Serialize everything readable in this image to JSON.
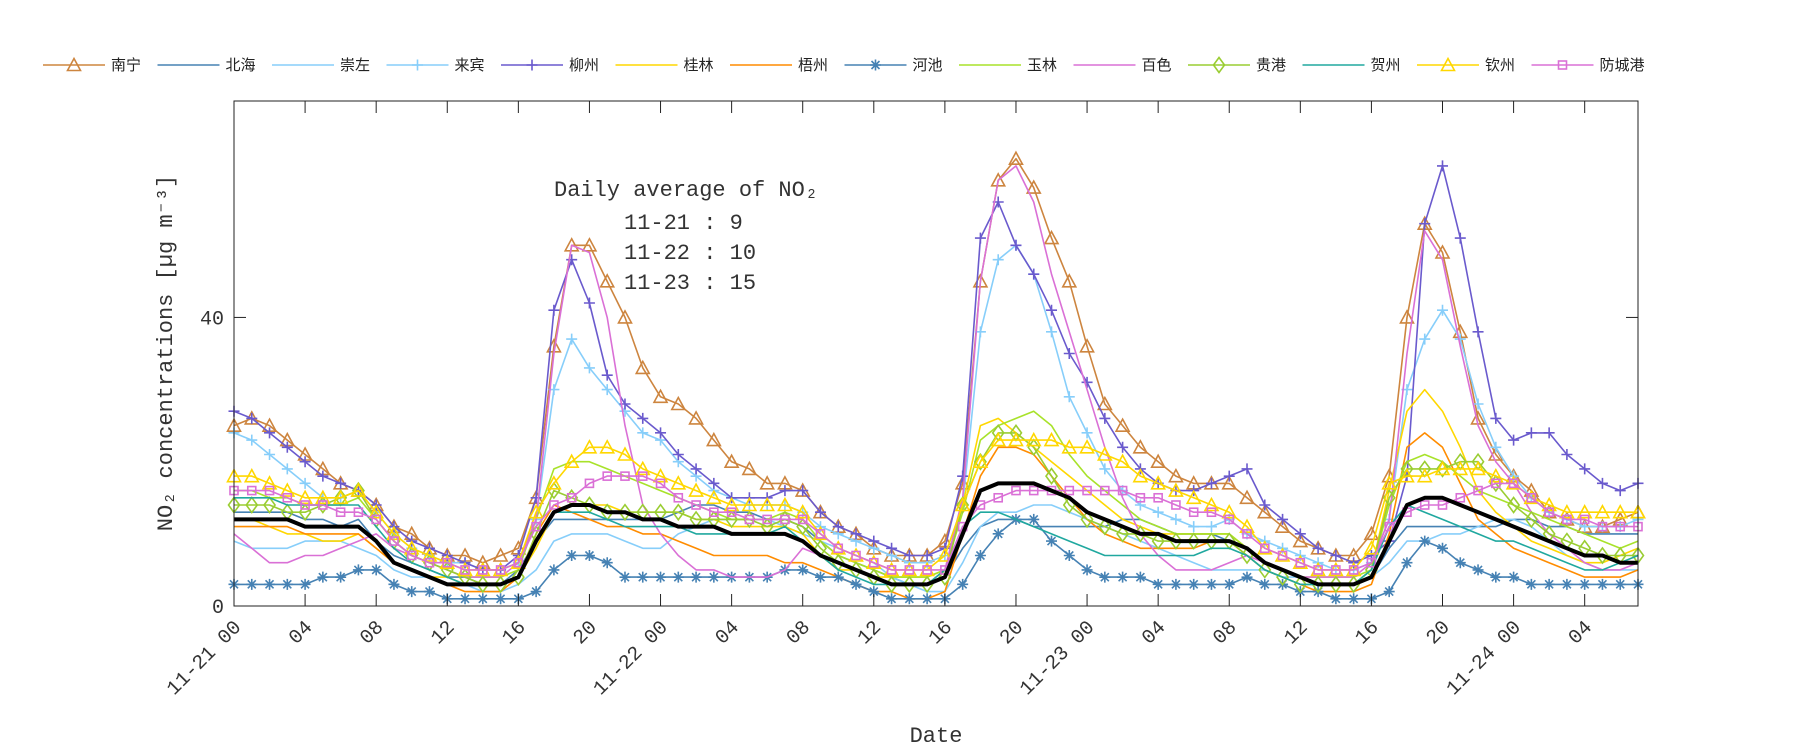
{
  "chart_data": {
    "type": "line",
    "xlabel": "Date",
    "ylabel": "NO₂ concentrations [µg m⁻³]",
    "xlim": [
      0,
      79
    ],
    "ylim": [
      0,
      70
    ],
    "yticks": [
      0,
      40
    ],
    "xticks": [
      {
        "h": 0,
        "label": "11-21 00"
      },
      {
        "h": 4,
        "label": "04"
      },
      {
        "h": 8,
        "label": "08"
      },
      {
        "h": 12,
        "label": "12"
      },
      {
        "h": 16,
        "label": "16"
      },
      {
        "h": 20,
        "label": "20"
      },
      {
        "h": 24,
        "label": "11-22 00"
      },
      {
        "h": 28,
        "label": "04"
      },
      {
        "h": 32,
        "label": "08"
      },
      {
        "h": 36,
        "label": "12"
      },
      {
        "h": 40,
        "label": "16"
      },
      {
        "h": 44,
        "label": "20"
      },
      {
        "h": 48,
        "label": "11-23 00"
      },
      {
        "h": 52,
        "label": "04"
      },
      {
        "h": 56,
        "label": "08"
      },
      {
        "h": 60,
        "label": "12"
      },
      {
        "h": 64,
        "label": "16"
      },
      {
        "h": 68,
        "label": "20"
      },
      {
        "h": 72,
        "label": "11-24 00"
      },
      {
        "h": 76,
        "label": "04"
      }
    ],
    "x_start": "11-21 00",
    "x_step": "1 hour",
    "grid": false,
    "legend_position": "top",
    "annotation": {
      "title": "Daily average of NO₂",
      "lines": [
        "11-21 : 9",
        "11-22 : 10",
        "11-23 : 15"
      ]
    },
    "series": [
      {
        "name": "南宁",
        "color": "#cd853f",
        "marker": "triangle",
        "values": [
          25,
          26,
          25,
          23,
          21,
          19,
          17,
          16,
          14,
          11,
          10,
          8,
          7,
          7,
          6,
          7,
          8,
          15,
          36,
          50,
          50,
          45,
          40,
          33,
          29,
          28,
          26,
          23,
          20,
          19,
          17,
          17,
          16,
          13,
          11,
          10,
          8,
          7,
          7,
          7,
          9,
          17,
          45,
          59,
          62,
          58,
          51,
          45,
          36,
          28,
          25,
          22,
          20,
          18,
          17,
          17,
          17,
          15,
          13,
          11,
          9,
          8,
          7,
          7,
          10,
          18,
          40,
          53,
          49,
          38,
          26,
          21,
          18,
          16,
          13,
          12,
          11,
          11,
          12,
          13
        ]
      },
      {
        "name": "北海",
        "color": "#4682b4",
        "marker": "none",
        "values": [
          13,
          13,
          13,
          13,
          12,
          12,
          11,
          12,
          9,
          7,
          6,
          5,
          4,
          4,
          3,
          3,
          5,
          9,
          12,
          12,
          12,
          12,
          12,
          12,
          12,
          13,
          14,
          14,
          13,
          13,
          12,
          12,
          11,
          9,
          7,
          6,
          5,
          4,
          3,
          3,
          4,
          8,
          11,
          12,
          12,
          11,
          11,
          11,
          11,
          11,
          12,
          12,
          11,
          10,
          10,
          10,
          9,
          8,
          6,
          5,
          4,
          3,
          3,
          3,
          4,
          8,
          11,
          11,
          11,
          11,
          11,
          11,
          12,
          12,
          11,
          11,
          10,
          10,
          10,
          10
        ]
      },
      {
        "name": "崇左",
        "color": "#87cefa",
        "marker": "none",
        "values": [
          9,
          8,
          8,
          8,
          9,
          9,
          9,
          8,
          7,
          5,
          4,
          4,
          3,
          3,
          2,
          2,
          3,
          5,
          9,
          10,
          10,
          10,
          9,
          8,
          8,
          10,
          11,
          12,
          12,
          12,
          12,
          11,
          10,
          9,
          8,
          7,
          6,
          4,
          3,
          2,
          2,
          6,
          11,
          13,
          13,
          14,
          14,
          13,
          12,
          11,
          10,
          9,
          8,
          7,
          6,
          5,
          5,
          5,
          5,
          4,
          4,
          3,
          3,
          3,
          4,
          6,
          9,
          9,
          10,
          10,
          11,
          12,
          12,
          11,
          9,
          7,
          6,
          5,
          5,
          5
        ]
      },
      {
        "name": "来宾",
        "color": "#87cefa",
        "marker": "plus",
        "values": [
          24,
          23,
          21,
          19,
          17,
          15,
          15,
          16,
          13,
          10,
          8,
          7,
          6,
          6,
          5,
          5,
          6,
          12,
          30,
          37,
          33,
          30,
          27,
          24,
          23,
          20,
          18,
          16,
          15,
          14,
          14,
          14,
          13,
          11,
          10,
          9,
          8,
          7,
          6,
          6,
          7,
          14,
          38,
          48,
          50,
          46,
          38,
          29,
          24,
          19,
          16,
          14,
          13,
          12,
          11,
          11,
          12,
          10,
          9,
          8,
          7,
          6,
          5,
          5,
          6,
          12,
          30,
          37,
          41,
          37,
          28,
          22,
          18,
          15,
          13,
          12,
          11,
          11,
          11,
          12
        ]
      },
      {
        "name": "柳州",
        "color": "#6a5acd",
        "marker": "plus",
        "values": [
          27,
          26,
          24,
          22,
          20,
          18,
          17,
          16,
          14,
          11,
          9,
          8,
          7,
          6,
          5,
          5,
          7,
          15,
          41,
          48,
          42,
          32,
          28,
          26,
          24,
          21,
          19,
          17,
          15,
          15,
          15,
          16,
          16,
          13,
          11,
          10,
          9,
          8,
          7,
          7,
          8,
          18,
          51,
          56,
          50,
          46,
          41,
          35,
          31,
          26,
          22,
          19,
          17,
          16,
          16,
          17,
          18,
          19,
          14,
          12,
          10,
          8,
          7,
          6,
          7,
          9,
          18,
          53,
          61,
          51,
          38,
          26,
          23,
          24,
          24,
          21,
          19,
          17,
          16,
          17
        ]
      },
      {
        "name": "桂林",
        "color": "#ffd700",
        "marker": "none",
        "values": [
          12,
          12,
          11,
          10,
          10,
          9,
          9,
          10,
          8,
          6,
          5,
          4,
          4,
          3,
          3,
          3,
          4,
          8,
          13,
          14,
          14,
          14,
          13,
          13,
          13,
          13,
          12,
          12,
          11,
          11,
          11,
          11,
          10,
          7,
          5,
          5,
          4,
          4,
          4,
          4,
          5,
          14,
          25,
          26,
          24,
          22,
          20,
          18,
          16,
          14,
          12,
          11,
          10,
          10,
          10,
          10,
          10,
          8,
          6,
          5,
          4,
          3,
          3,
          3,
          5,
          16,
          27,
          30,
          27,
          22,
          16,
          13,
          11,
          9,
          8,
          7,
          6,
          6,
          7,
          8
        ]
      },
      {
        "name": "梧州",
        "color": "#ff8c00",
        "marker": "none",
        "values": [
          11,
          11,
          11,
          11,
          10,
          10,
          10,
          10,
          8,
          6,
          5,
          4,
          3,
          2,
          2,
          2,
          4,
          10,
          14,
          13,
          12,
          11,
          11,
          10,
          10,
          9,
          8,
          7,
          7,
          7,
          7,
          6,
          6,
          5,
          4,
          3,
          2,
          2,
          1,
          1,
          2,
          10,
          18,
          22,
          22,
          21,
          18,
          15,
          12,
          10,
          9,
          8,
          8,
          8,
          8,
          9,
          9,
          7,
          5,
          4,
          3,
          2,
          2,
          2,
          3,
          10,
          22,
          24,
          22,
          17,
          12,
          10,
          8,
          7,
          6,
          5,
          4,
          4,
          4,
          5
        ]
      },
      {
        "name": "河池",
        "color": "#4682b4",
        "marker": "star",
        "values": [
          3,
          3,
          3,
          3,
          3,
          4,
          4,
          5,
          5,
          3,
          2,
          2,
          1,
          1,
          1,
          1,
          1,
          2,
          5,
          7,
          7,
          6,
          4,
          4,
          4,
          4,
          4,
          4,
          4,
          4,
          4,
          5,
          5,
          4,
          4,
          3,
          2,
          1,
          1,
          1,
          1,
          3,
          7,
          10,
          12,
          12,
          9,
          7,
          5,
          4,
          4,
          4,
          3,
          3,
          3,
          3,
          3,
          4,
          3,
          3,
          2,
          2,
          1,
          1,
          1,
          2,
          6,
          9,
          8,
          6,
          5,
          4,
          4,
          3,
          3,
          3,
          3,
          3,
          3,
          3
        ]
      },
      {
        "name": "玉林",
        "color": "#a8e22a",
        "marker": "none",
        "values": [
          16,
          16,
          15,
          15,
          14,
          14,
          14,
          15,
          12,
          9,
          7,
          6,
          5,
          4,
          4,
          4,
          5,
          12,
          19,
          20,
          20,
          19,
          18,
          17,
          16,
          15,
          14,
          13,
          12,
          12,
          12,
          13,
          12,
          9,
          7,
          6,
          5,
          4,
          4,
          4,
          5,
          13,
          23,
          25,
          26,
          27,
          25,
          21,
          18,
          16,
          14,
          12,
          11,
          10,
          10,
          10,
          10,
          8,
          6,
          5,
          4,
          4,
          4,
          4,
          5,
          14,
          20,
          21,
          20,
          18,
          16,
          15,
          14,
          13,
          12,
          11,
          10,
          9,
          8,
          9
        ]
      },
      {
        "name": "百色",
        "color": "#da70d6",
        "marker": "none",
        "values": [
          10,
          8,
          6,
          6,
          7,
          7,
          8,
          9,
          10,
          8,
          7,
          6,
          5,
          4,
          4,
          4,
          6,
          12,
          35,
          50,
          49,
          40,
          25,
          14,
          10,
          7,
          5,
          5,
          4,
          4,
          4,
          5,
          8,
          7,
          6,
          5,
          4,
          3,
          3,
          3,
          5,
          15,
          45,
          59,
          61,
          56,
          46,
          38,
          30,
          22,
          15,
          10,
          7,
          5,
          5,
          5,
          6,
          7,
          6,
          5,
          4,
          4,
          4,
          4,
          6,
          12,
          35,
          52,
          48,
          36,
          25,
          20,
          17,
          13,
          10,
          8,
          6,
          5,
          5,
          6
        ]
      },
      {
        "name": "贵港",
        "color": "#9acd32",
        "marker": "diamond",
        "values": [
          14,
          14,
          14,
          13,
          13,
          14,
          15,
          16,
          12,
          9,
          7,
          6,
          5,
          4,
          3,
          3,
          4,
          10,
          16,
          15,
          14,
          13,
          13,
          13,
          13,
          13,
          12,
          12,
          12,
          12,
          11,
          12,
          11,
          8,
          6,
          5,
          4,
          3,
          3,
          3,
          4,
          14,
          20,
          24,
          24,
          22,
          18,
          14,
          12,
          11,
          10,
          10,
          9,
          9,
          9,
          9,
          9,
          7,
          5,
          4,
          3,
          3,
          3,
          3,
          5,
          15,
          19,
          19,
          19,
          20,
          20,
          17,
          14,
          12,
          10,
          9,
          8,
          7,
          7,
          7
        ]
      },
      {
        "name": "贺州",
        "color": "#20a89f",
        "marker": "none",
        "values": [
          15,
          15,
          15,
          14,
          14,
          14,
          14,
          14,
          11,
          8,
          6,
          5,
          4,
          3,
          3,
          3,
          4,
          9,
          13,
          13,
          13,
          12,
          11,
          11,
          11,
          11,
          10,
          10,
          10,
          10,
          10,
          11,
          9,
          7,
          5,
          4,
          3,
          3,
          3,
          3,
          5,
          11,
          13,
          13,
          12,
          11,
          10,
          9,
          8,
          7,
          7,
          7,
          7,
          7,
          7,
          8,
          8,
          7,
          5,
          4,
          3,
          3,
          3,
          3,
          5,
          11,
          14,
          13,
          12,
          11,
          10,
          9,
          9,
          8,
          7,
          6,
          5,
          5,
          6,
          7
        ]
      },
      {
        "name": "钦州",
        "color": "#ffd700",
        "marker": "triangle",
        "values": [
          18,
          18,
          17,
          16,
          15,
          15,
          15,
          16,
          13,
          10,
          8,
          7,
          6,
          5,
          5,
          5,
          6,
          13,
          17,
          20,
          22,
          22,
          21,
          19,
          18,
          17,
          16,
          15,
          14,
          14,
          14,
          14,
          13,
          10,
          8,
          7,
          6,
          5,
          5,
          5,
          7,
          14,
          20,
          23,
          23,
          23,
          23,
          22,
          22,
          21,
          20,
          18,
          17,
          16,
          15,
          14,
          13,
          11,
          8,
          7,
          6,
          5,
          5,
          5,
          8,
          17,
          18,
          18,
          19,
          19,
          19,
          18,
          17,
          15,
          14,
          13,
          13,
          13,
          13,
          13
        ]
      },
      {
        "name": "防城港",
        "color": "#da70d6",
        "marker": "square",
        "values": [
          16,
          16,
          16,
          15,
          14,
          14,
          13,
          13,
          12,
          9,
          7,
          6,
          6,
          5,
          5,
          5,
          6,
          11,
          14,
          15,
          17,
          18,
          18,
          18,
          17,
          15,
          14,
          13,
          13,
          12,
          12,
          12,
          12,
          10,
          8,
          7,
          6,
          5,
          5,
          5,
          5,
          11,
          14,
          15,
          16,
          16,
          16,
          16,
          16,
          16,
          16,
          15,
          15,
          14,
          13,
          13,
          12,
          10,
          8,
          7,
          6,
          5,
          5,
          5,
          6,
          11,
          13,
          14,
          14,
          15,
          16,
          17,
          17,
          15,
          13,
          12,
          12,
          11,
          11,
          11
        ]
      },
      {
        "color": "#000000",
        "marker": "none",
        "thick": true,
        "values": [
          12,
          12,
          12,
          12,
          11,
          11,
          11,
          11,
          9,
          6,
          5,
          4,
          3,
          3,
          3,
          3,
          4,
          9,
          13,
          14,
          14,
          13,
          13,
          12,
          12,
          11,
          11,
          11,
          10,
          10,
          10,
          10,
          9,
          7,
          6,
          5,
          4,
          3,
          3,
          3,
          4,
          10,
          16,
          17,
          17,
          17,
          16,
          15,
          13,
          12,
          11,
          10,
          10,
          9,
          9,
          9,
          9,
          8,
          6,
          5,
          4,
          3,
          3,
          3,
          4,
          9,
          14,
          15,
          15,
          14,
          13,
          12,
          11,
          10,
          9,
          8,
          7,
          7,
          6,
          6
        ]
      }
    ]
  }
}
